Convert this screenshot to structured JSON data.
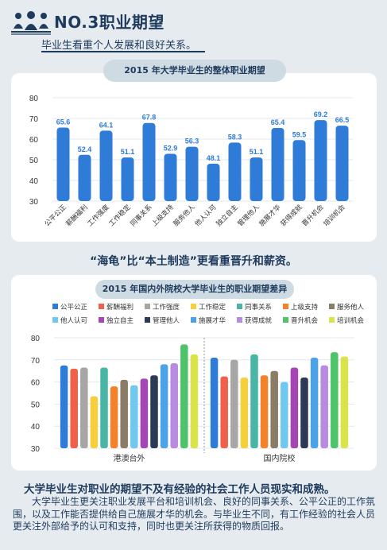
{
  "header": {
    "title": "NO.3职业期望",
    "subtitle": "毕业生看重个人发展和良好关系。",
    "icon": "people-group-icon"
  },
  "chart1": {
    "title": "2015 年大学毕业生的整体职业期望"
  },
  "heading2": "“海龟”比“本土制造”更看重晋升和薪资。",
  "chart2": {
    "title": "2015 年国内外院校大学毕业生的职业期望差异"
  },
  "heading3": "大学毕业生对职业的期望不及有经验的社会工作人员现实和成熟。",
  "paragraph": "大学毕业生更关注职业发展平台和培训机会、良好的同事关系、公平公正的工作氛围，以及工作能否提供给自己施展才华的机会。与毕业生不同，有工作经验的社会人员更关注外部给予的认可和支持，同时也更关注所获得的物质回报。",
  "chart_data": [
    {
      "type": "bar",
      "title": "2015 年大学毕业生的整体职业期望",
      "categories": [
        "公平公正",
        "薪酬福利",
        "工作强度",
        "工作稳定",
        "同事关系",
        "上级支持",
        "服务他人",
        "他人认可",
        "独立自主",
        "管理他人",
        "施展才华",
        "获得成就",
        "晋升机会",
        "培训机会"
      ],
      "values": [
        65.6,
        52.4,
        64.1,
        51.1,
        67.8,
        52.9,
        56.3,
        48.1,
        58.3,
        51.1,
        65.4,
        59.5,
        69.2,
        66.5
      ],
      "yticks": [
        30,
        40,
        50,
        60,
        70,
        80
      ],
      "ylim": [
        30,
        80
      ],
      "color": "#2f7bd8",
      "grid": true
    },
    {
      "type": "bar",
      "title": "2015 年国内外院校大学毕业生的职业期望差异",
      "groups": [
        "港澳台外",
        "国内院校"
      ],
      "series": [
        {
          "name": "公平公正",
          "color": "#2f7bd8",
          "values": [
            67.5,
            71
          ]
        },
        {
          "name": "薪酬福利",
          "color": "#f0604a",
          "values": [
            66,
            62.5
          ]
        },
        {
          "name": "工作强度",
          "color": "#a6a6a6",
          "values": [
            66.5,
            70
          ]
        },
        {
          "name": "工作稳定",
          "color": "#f5cf3c",
          "values": [
            53.5,
            62
          ]
        },
        {
          "name": "同事关系",
          "color": "#49b5a6",
          "values": [
            66.5,
            72.5
          ]
        },
        {
          "name": "上级支持",
          "color": "#f5822a",
          "values": [
            58,
            63
          ]
        },
        {
          "name": "服务他人",
          "color": "#8a7c66",
          "values": [
            61,
            65
          ]
        },
        {
          "name": "他人认可",
          "color": "#6ec8f0",
          "values": [
            58.5,
            60
          ]
        },
        {
          "name": "独立自主",
          "color": "#a546b4",
          "values": [
            61.5,
            66.5
          ]
        },
        {
          "name": "管理他人",
          "color": "#2d3a55",
          "values": [
            63,
            62
          ]
        },
        {
          "name": "施展才华",
          "color": "#4aa2e8",
          "values": [
            68,
            71
          ]
        },
        {
          "name": "获得成就",
          "color": "#b98be0",
          "values": [
            68.5,
            67.5
          ]
        },
        {
          "name": "晋升机会",
          "color": "#4fc36a",
          "values": [
            77,
            73.5
          ]
        },
        {
          "name": "培训机会",
          "color": "#d9e34a",
          "values": [
            72.5,
            71.5
          ]
        }
      ],
      "yticks": [
        30,
        40,
        50,
        60,
        70,
        80
      ],
      "ylim": [
        30,
        80
      ],
      "legend_position": "top",
      "grid": true
    }
  ]
}
